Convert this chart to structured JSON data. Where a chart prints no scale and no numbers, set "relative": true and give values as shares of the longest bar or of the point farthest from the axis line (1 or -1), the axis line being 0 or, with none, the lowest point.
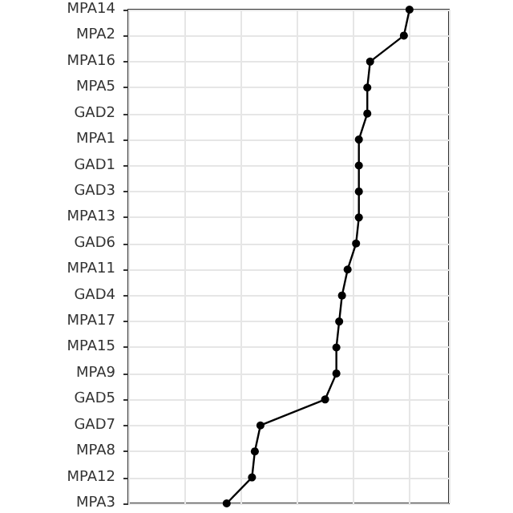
{
  "chart_data": {
    "type": "line",
    "orientation": "horizontal",
    "relative": true,
    "grid": true,
    "marker": "circle",
    "line_style": "solid",
    "categories": [
      "MPA14",
      "MPA2",
      "MPA16",
      "MPA5",
      "GAD2",
      "MPA1",
      "GAD1",
      "GAD3",
      "MPA13",
      "GAD6",
      "MPA11",
      "GAD4",
      "MPA17",
      "MPA15",
      "MPA9",
      "GAD5",
      "GAD7",
      "MPA8",
      "MPA12",
      "MPA3"
    ],
    "series": [
      {
        "color": "#000000",
        "values": [
          1,
          0.98,
          0.86,
          0.85,
          0.85,
          0.82,
          0.82,
          0.82,
          0.82,
          0.81,
          0.78,
          0.76,
          0.75,
          0.74,
          0.74,
          0.7,
          0.47,
          0.45,
          0.44,
          0.35
        ]
      }
    ]
  }
}
